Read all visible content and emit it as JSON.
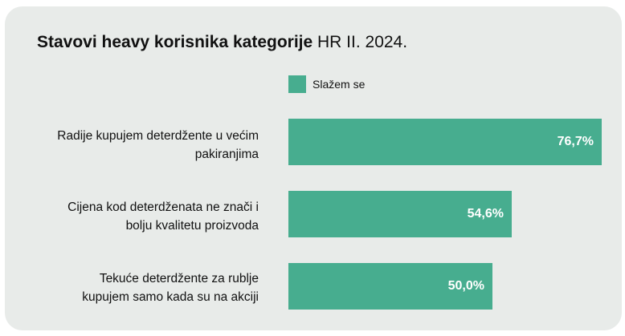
{
  "chart_data": {
    "type": "bar",
    "orientation": "horizontal",
    "title": "Stavovi heavy korisnika kategorije",
    "subtitle": "HR II. 2024.",
    "categories": [
      "Radije kupujem deterdžente u većim pakiranjima",
      "Cijena kod deterdženata ne znači i bolju kvalitetu proizvoda",
      "Tekuće deterdžente za rublje kupujem samo kada su na akciji"
    ],
    "category_lines": [
      [
        "Radije kupujem deterdžente u većim",
        "pakiranjima"
      ],
      [
        "Cijena kod deterdženata ne znači i",
        "bolju kvalitetu proizvoda"
      ],
      [
        "Tekuće deterdžente za rublje",
        "kupujem samo kada su na akciji"
      ]
    ],
    "series": [
      {
        "name": "Slažem se",
        "values": [
          76.7,
          54.6,
          50.0
        ],
        "labels": [
          "76,7%",
          "54,6%",
          "50,0%"
        ],
        "color": "#47ad8f"
      }
    ],
    "legend": "top",
    "grid": false,
    "xlim": [
      0,
      76.7
    ]
  },
  "colors": {
    "card_background": "#e8ebe9",
    "bar": "#47ad8f"
  }
}
